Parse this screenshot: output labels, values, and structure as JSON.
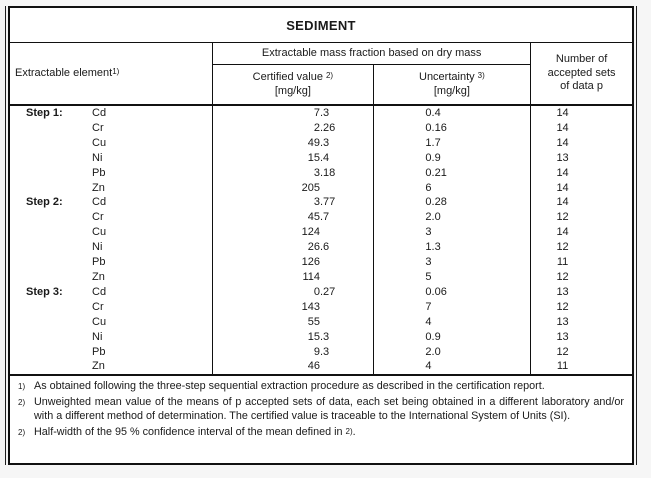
{
  "title": "SEDIMENT",
  "header": {
    "element_label": "Extractable element",
    "element_sup": "1)",
    "group_label": "Extractable mass fraction based on dry mass",
    "certified_label": "Certified value",
    "certified_sup": "2)",
    "certified_unit": "[mg/kg]",
    "uncertainty_label": "Uncertainty",
    "uncertainty_sup": "3)",
    "uncertainty_unit": "[mg/kg]",
    "sets_line1": "Number of",
    "sets_line2": "accepted sets",
    "sets_line3": "of data p"
  },
  "rows": [
    {
      "step": "Step 1:",
      "element": "Cd",
      "certified": "7.3",
      "uncertainty": "0.4",
      "sets": "14"
    },
    {
      "step": "",
      "element": "Cr",
      "certified": "2.26",
      "uncertainty": "0.16",
      "sets": "14"
    },
    {
      "step": "",
      "element": "Cu",
      "certified": "49.3",
      "uncertainty": "1.7",
      "sets": "14"
    },
    {
      "step": "",
      "element": "Ni",
      "certified": "15.4",
      "uncertainty": "0.9",
      "sets": "13"
    },
    {
      "step": "",
      "element": "Pb",
      "certified": "3.18",
      "uncertainty": "0.21",
      "sets": "14"
    },
    {
      "step": "",
      "element": "Zn",
      "certified": "205",
      "uncertainty": "6",
      "sets": "14"
    },
    {
      "step": "Step 2:",
      "element": "Cd",
      "certified": "3.77",
      "uncertainty": "0.28",
      "sets": "14"
    },
    {
      "step": "",
      "element": "Cr",
      "certified": "45.7",
      "uncertainty": "2.0",
      "sets": "12"
    },
    {
      "step": "",
      "element": "Cu",
      "certified": "124",
      "uncertainty": "3",
      "sets": "14"
    },
    {
      "step": "",
      "element": "Ni",
      "certified": "26.6",
      "uncertainty": "1.3",
      "sets": "12"
    },
    {
      "step": "",
      "element": "Pb",
      "certified": "126",
      "uncertainty": "3",
      "sets": "11"
    },
    {
      "step": "",
      "element": "Zn",
      "certified": "114",
      "uncertainty": "5",
      "sets": "12"
    },
    {
      "step": "Step 3:",
      "element": "Cd",
      "certified": "0.27",
      "uncertainty": "0.06",
      "sets": "13"
    },
    {
      "step": "",
      "element": "Cr",
      "certified": "143",
      "uncertainty": "7",
      "sets": "12"
    },
    {
      "step": "",
      "element": "Cu",
      "certified": "55",
      "uncertainty": "4",
      "sets": "13"
    },
    {
      "step": "",
      "element": "Ni",
      "certified": "15.3",
      "uncertainty": "0.9",
      "sets": "13"
    },
    {
      "step": "",
      "element": "Pb",
      "certified": "9.3",
      "uncertainty": "2.0",
      "sets": "12"
    },
    {
      "step": "",
      "element": "Zn",
      "certified": "46",
      "uncertainty": "4",
      "sets": "11"
    }
  ],
  "footnotes": [
    {
      "marker": "1)",
      "justify": false,
      "parts": [
        {
          "t": "As obtained following the three-step sequential extraction procedure as described in the certification report."
        }
      ]
    },
    {
      "marker": "2)",
      "justify": true,
      "parts": [
        {
          "t": "Unweighted mean value of the means of p accepted sets of data, each set being obtained in a different laboratory and/or with a different method of determination. The certified value is traceable to the International System of Units (SI)."
        }
      ]
    },
    {
      "marker": "2)",
      "justify": false,
      "parts": [
        {
          "t": "Half-width of the 95 % confidence interval of the mean defined in "
        },
        {
          "sup": "2)"
        },
        {
          "t": "."
        }
      ]
    }
  ],
  "colors": {
    "page_background": "#f6f6f6",
    "table_background": "#ffffff",
    "border": "#111111",
    "text": "#1a1a1a"
  }
}
